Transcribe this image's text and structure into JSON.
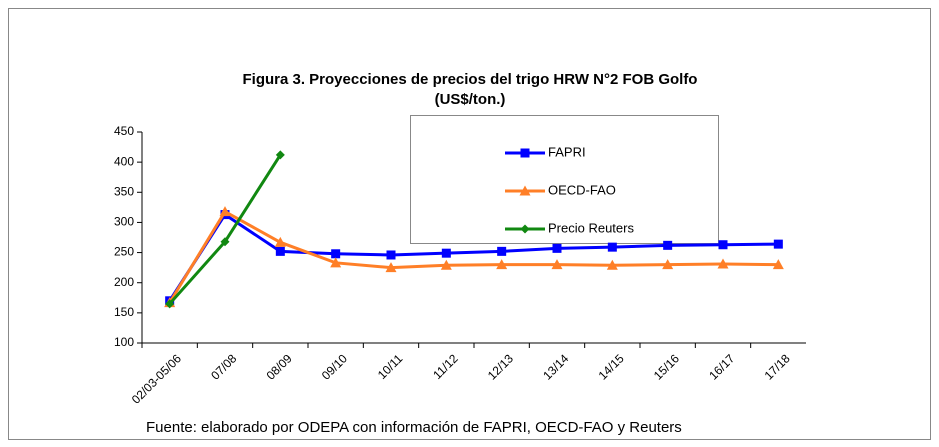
{
  "chart_data": {
    "type": "line",
    "title": "Figura 3. Proyecciones de precios del trigo HRW N°2  FOB Golfo",
    "subtitle": "(US$/ton.)",
    "note": "Fuente: elaborado por ODEPA con información de FAPRI, OECD-FAO y Reuters",
    "categories": [
      "02/03-05/06",
      "07/08",
      "08/09",
      "09/10",
      "10/11",
      "11/12",
      "12/13",
      "13/14",
      "14/15",
      "15/16",
      "16/17",
      "17/18"
    ],
    "series": [
      {
        "name": "FAPRI",
        "color": "#0000ff",
        "marker": "square",
        "values": [
          170,
          313,
          252,
          248,
          246,
          249,
          252,
          257,
          259,
          262,
          263,
          264
        ]
      },
      {
        "name": "OECD-FAO",
        "color": "#ff7f27",
        "marker": "triangle",
        "values": [
          167,
          318,
          267,
          233,
          225,
          229,
          230,
          230,
          229,
          230,
          231,
          230
        ]
      },
      {
        "name": "Precio Reuters",
        "color": "#118811",
        "marker": "diamond",
        "values": [
          165,
          268,
          412,
          null,
          null,
          null,
          null,
          null,
          null,
          null,
          null,
          null
        ]
      }
    ],
    "ylim": [
      100,
      450
    ],
    "yticks": [
      100,
      150,
      200,
      250,
      300,
      350,
      400,
      450
    ],
    "grid": false
  }
}
